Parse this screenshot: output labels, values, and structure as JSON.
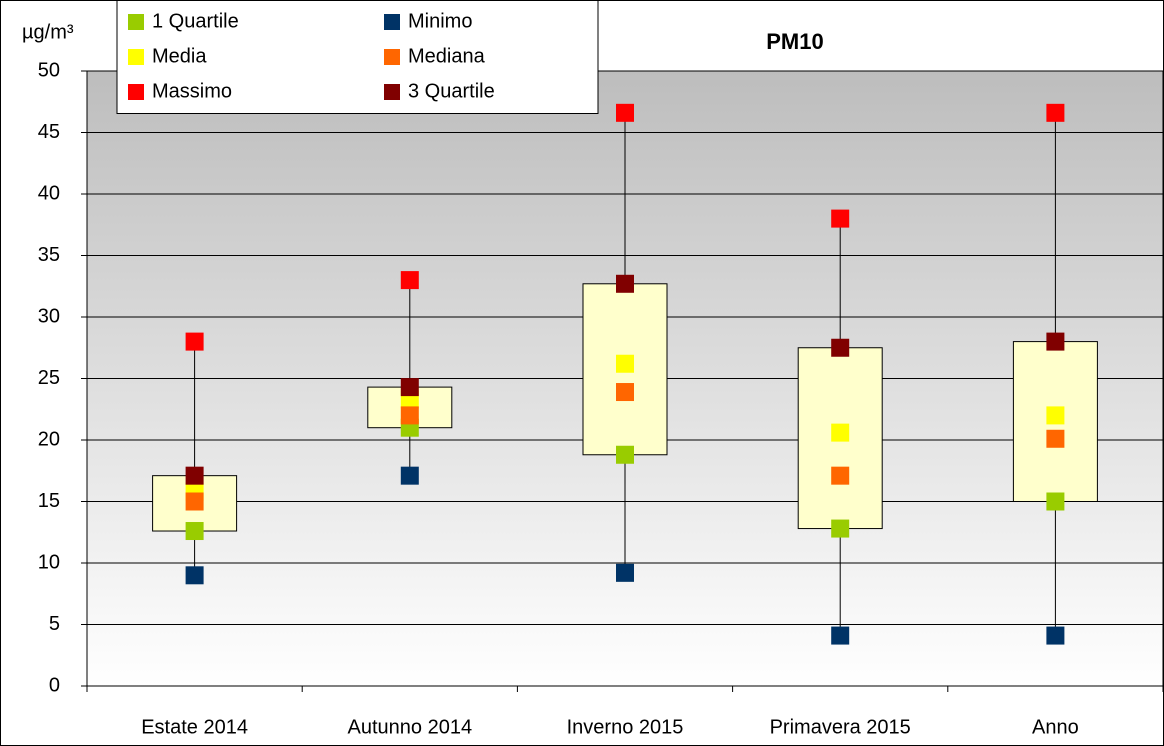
{
  "chart_data": {
    "type": "box",
    "title": "PM10",
    "y_label": "µg/m³",
    "categories": [
      "Estate 2014",
      "Autunno 2014",
      "Inverno 2015",
      "Primavera 2015",
      "Anno"
    ],
    "series": [
      {
        "name": "1 Quartile",
        "color": "#99cc00",
        "values": [
          12.6,
          21,
          18.8,
          12.8,
          15
        ]
      },
      {
        "name": "Media",
        "color": "#ffff00",
        "values": [
          15.8,
          23.3,
          26.2,
          20.6,
          22
        ]
      },
      {
        "name": "Massimo",
        "color": "#ff0000",
        "values": [
          28,
          33,
          46.6,
          38,
          46.6
        ]
      },
      {
        "name": "Minimo",
        "color": "#003366",
        "values": [
          9,
          17.1,
          9.2,
          4.1,
          4.1
        ]
      },
      {
        "name": "Mediana",
        "color": "#ff6600",
        "values": [
          15,
          22,
          23.9,
          17.1,
          20.1
        ]
      },
      {
        "name": "3 Quartile",
        "color": "#800000",
        "values": [
          17.1,
          24.3,
          32.7,
          27.5,
          28
        ]
      }
    ],
    "box_color": "#ffffcc",
    "ylim": [
      0,
      50
    ],
    "yticks": [
      0,
      5,
      10,
      15,
      20,
      25,
      30,
      35,
      40,
      45,
      50
    ],
    "grid": true
  }
}
